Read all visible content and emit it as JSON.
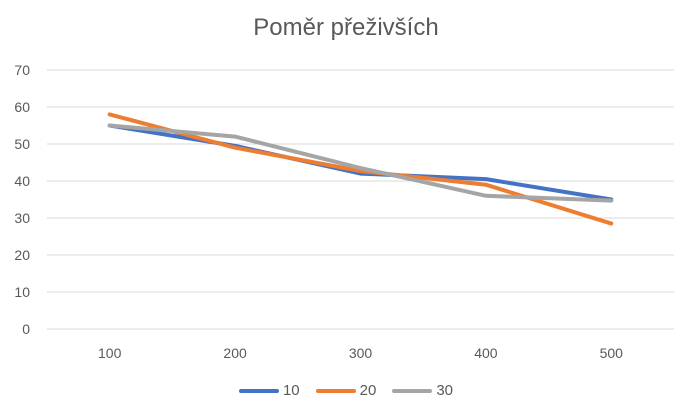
{
  "chart_data": {
    "type": "line",
    "title": "Poměr přeživších",
    "xlabel": "",
    "ylabel": "",
    "categories": [
      "100",
      "200",
      "300",
      "400",
      "500"
    ],
    "ylim": [
      0,
      70
    ],
    "yticks": [
      0,
      10,
      20,
      30,
      40,
      50,
      60,
      70
    ],
    "grid": true,
    "legend_position": "bottom",
    "series": [
      {
        "name": "10",
        "color": "#4472C4",
        "values": [
          55,
          49.5,
          42,
          40.5,
          35
        ]
      },
      {
        "name": "20",
        "color": "#ED7D31",
        "values": [
          58,
          49,
          42.7,
          39,
          28.5
        ]
      },
      {
        "name": "30",
        "color": "#A5A5A5",
        "values": [
          55,
          52,
          43.5,
          36,
          34.7
        ]
      }
    ]
  },
  "legend": [
    {
      "label": "10",
      "color": "#4472C4"
    },
    {
      "label": "20",
      "color": "#ED7D31"
    },
    {
      "label": "30",
      "color": "#A5A5A5"
    }
  ]
}
